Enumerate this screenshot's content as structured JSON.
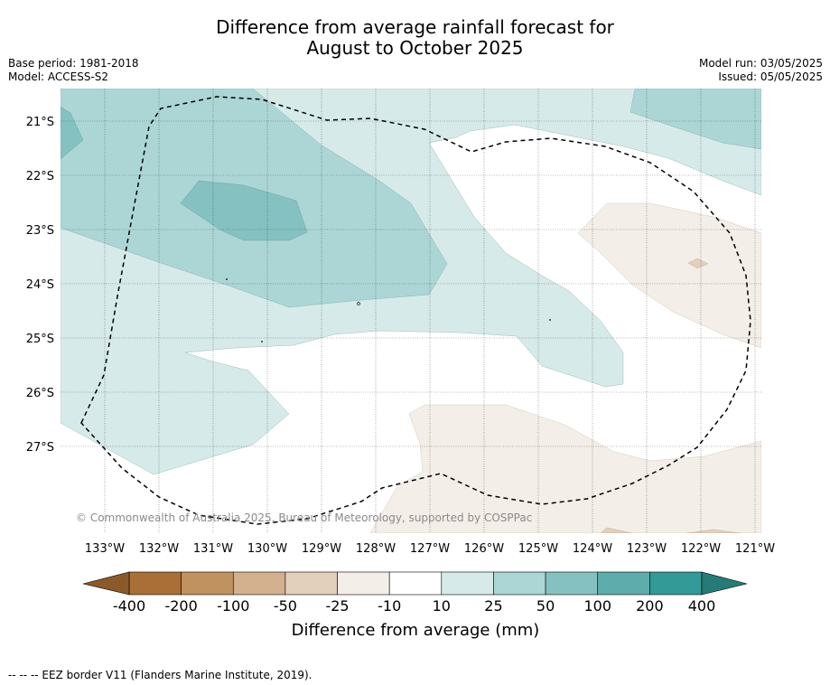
{
  "title": {
    "line1": "Difference from average rainfall forecast for",
    "line2": "August to October 2025"
  },
  "meta_left": {
    "base_period": "Base period: 1981-2018",
    "model": "Model: ACCESS-S2"
  },
  "meta_right": {
    "model_run": "Model run: 03/05/2025",
    "issued": "Issued: 05/05/2025"
  },
  "map": {
    "lat_labels": [
      "21°S",
      "22°S",
      "23°S",
      "24°S",
      "25°S",
      "26°S",
      "27°S"
    ],
    "lon_labels": [
      "133°W",
      "132°W",
      "131°W",
      "130°W",
      "129°W",
      "128°W",
      "127°W",
      "126°W",
      "125°W",
      "124°W",
      "123°W",
      "122°W",
      "121°W"
    ],
    "copyright": "© Commonwealth of Australia 2025, Bureau of Meteorology, supported by COSPPac"
  },
  "colorbar": {
    "labels": [
      "-400",
      "-200",
      "-100",
      "-50",
      "-25",
      "-10",
      "10",
      "25",
      "50",
      "100",
      "200",
      "400"
    ],
    "colors": [
      "#a96f36",
      "#c0925f",
      "#d3b08e",
      "#e2cfbc",
      "#f4eee8",
      "#ffffff",
      "#d6ebe9",
      "#acd6d5",
      "#86c1c1",
      "#5eacab",
      "#339a97"
    ],
    "extend_low_color": "#8a5a2b",
    "extend_high_color": "#267b78",
    "title": "Difference from average (mm)"
  },
  "footnote": "--  --  -- EEZ border V11 (Flanders Marine Institute, 2019)."
}
